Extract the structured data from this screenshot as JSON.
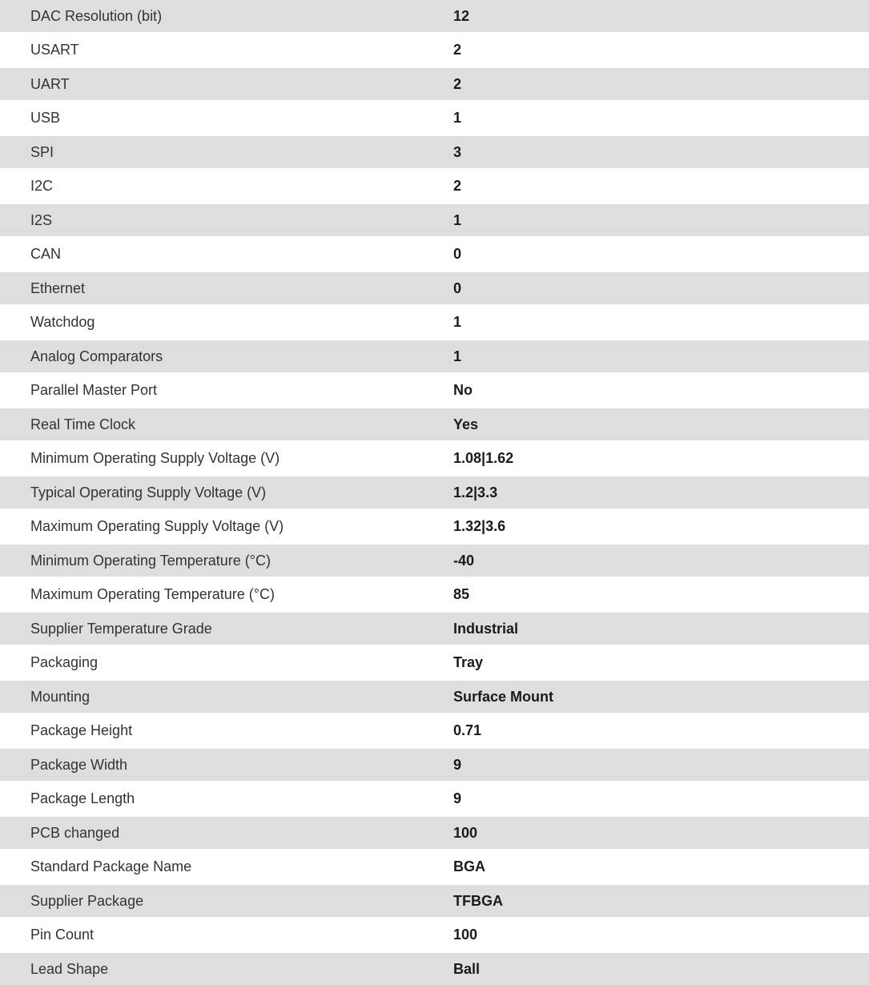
{
  "specs": [
    {
      "label": "DAC Resolution (bit)",
      "value": "12"
    },
    {
      "label": "USART",
      "value": "2"
    },
    {
      "label": "UART",
      "value": "2"
    },
    {
      "label": "USB",
      "value": "1"
    },
    {
      "label": "SPI",
      "value": "3"
    },
    {
      "label": "I2C",
      "value": "2"
    },
    {
      "label": "I2S",
      "value": "1"
    },
    {
      "label": "CAN",
      "value": "0"
    },
    {
      "label": "Ethernet",
      "value": "0"
    },
    {
      "label": "Watchdog",
      "value": "1"
    },
    {
      "label": "Analog Comparators",
      "value": "1"
    },
    {
      "label": "Parallel Master Port",
      "value": "No"
    },
    {
      "label": "Real Time Clock",
      "value": "Yes"
    },
    {
      "label": "Minimum Operating Supply Voltage (V)",
      "value": "1.08|1.62"
    },
    {
      "label": "Typical Operating Supply Voltage (V)",
      "value": "1.2|3.3"
    },
    {
      "label": "Maximum Operating Supply Voltage (V)",
      "value": "1.32|3.6"
    },
    {
      "label": "Minimum Operating Temperature (°C)",
      "value": "-40"
    },
    {
      "label": "Maximum Operating Temperature (°C)",
      "value": "85"
    },
    {
      "label": "Supplier Temperature Grade",
      "value": "Industrial"
    },
    {
      "label": "Packaging",
      "value": "Tray"
    },
    {
      "label": "Mounting",
      "value": "Surface Mount"
    },
    {
      "label": "Package Height",
      "value": "0.71"
    },
    {
      "label": "Package Width",
      "value": "9"
    },
    {
      "label": "Package Length",
      "value": "9"
    },
    {
      "label": "PCB changed",
      "value": "100"
    },
    {
      "label": "Standard Package Name",
      "value": "BGA"
    },
    {
      "label": "Supplier Package",
      "value": "TFBGA"
    },
    {
      "label": "Pin Count",
      "value": "100"
    },
    {
      "label": "Lead Shape",
      "value": "Ball"
    }
  ]
}
